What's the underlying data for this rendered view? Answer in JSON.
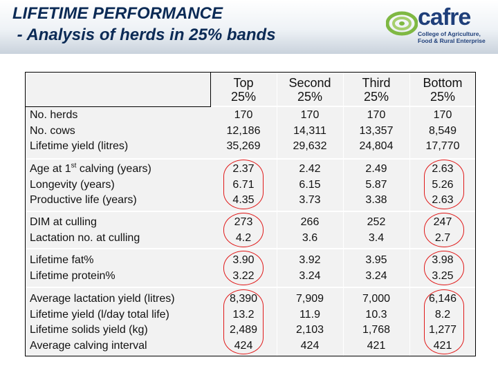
{
  "slide": {
    "title_line1": "LIFETIME PERFORMANCE",
    "title_line2": " - Analysis of herds in 25% bands",
    "logo": {
      "name": "cafre",
      "subtitle_line1": "College of Agriculture,",
      "subtitle_line2": "Food & Rural Enterprise"
    }
  },
  "table": {
    "columns": [
      {
        "line1": "Top",
        "line2": "25%"
      },
      {
        "line1": "Second",
        "line2": "25%"
      },
      {
        "line1": "Third",
        "line2": "25%"
      },
      {
        "line1": "Bottom",
        "line2": "25%"
      }
    ],
    "groups": [
      {
        "labels": [
          "No. herds",
          "No. cows",
          "Lifetime yield (litres)"
        ],
        "values": [
          [
            "170",
            "12,186",
            "35,269"
          ],
          [
            "170",
            "14,311",
            "29,632"
          ],
          [
            "170",
            "13,357",
            "24,804"
          ],
          [
            "170",
            "8,549",
            "17,770"
          ]
        ]
      },
      {
        "label_first_pre": "Age at 1",
        "label_first_sup": "st",
        "label_first_post": " calving (years)",
        "labels": [
          "Longevity (years)",
          "Productive life (years)"
        ],
        "values": [
          [
            "2.37",
            "6.71",
            "4.35"
          ],
          [
            "2.42",
            "6.15",
            "3.73"
          ],
          [
            "2.49",
            "5.87",
            "3.38"
          ],
          [
            "2.63",
            "5.26",
            "2.63"
          ]
        ]
      },
      {
        "labels": [
          "DIM at culling",
          "Lactation no. at culling"
        ],
        "values": [
          [
            "273",
            "4.2"
          ],
          [
            "266",
            "3.6"
          ],
          [
            "252",
            "3.4"
          ],
          [
            "247",
            "2.7"
          ]
        ]
      },
      {
        "labels": [
          "Lifetime fat%",
          "Lifetime protein%"
        ],
        "values": [
          [
            "3.90",
            "3.22"
          ],
          [
            "3.92",
            "3.24"
          ],
          [
            "3.95",
            "3.24"
          ],
          [
            "3.98",
            "3.25"
          ]
        ]
      },
      {
        "labels": [
          "Average lactation yield (litres)",
          "Lifetime yield (l/day total life)",
          "Lifetime solids yield (kg)",
          "Average calving interval"
        ],
        "values": [
          [
            "8,390",
            "13.2",
            "2,489",
            "424"
          ],
          [
            "7,909",
            "11.9",
            "2,103",
            "424"
          ],
          [
            "7,000",
            "10.3",
            "1,768",
            "421"
          ],
          [
            "6,146",
            "8.2",
            "1,277",
            "421"
          ]
        ]
      }
    ],
    "highlight_color": "#e01818"
  }
}
